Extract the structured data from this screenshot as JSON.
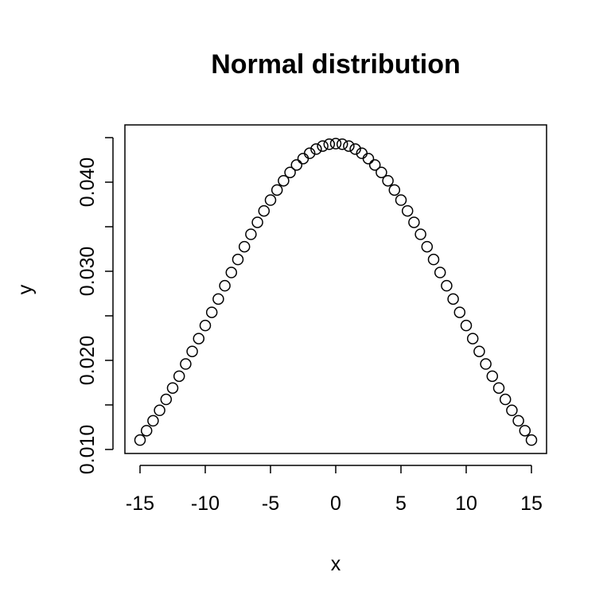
{
  "chart_data": {
    "type": "scatter",
    "title": "Normal distribution",
    "xlabel": "x",
    "ylabel": "y",
    "xlim": [
      -15,
      15
    ],
    "ylim": [
      0.0108,
      0.045
    ],
    "x_ticks": [
      -15,
      -10,
      -5,
      0,
      5,
      10,
      15
    ],
    "x_tick_labels": [
      "-15",
      "-10",
      "-5",
      "0",
      "5",
      "10",
      "15"
    ],
    "y_ticks": [
      0.01,
      0.015,
      0.02,
      0.025,
      0.03,
      0.035,
      0.04,
      0.045
    ],
    "y_tick_labels": [
      "0.010",
      "",
      "0.020",
      "",
      "0.030",
      "",
      "0.040",
      ""
    ],
    "distribution": {
      "mean": 0,
      "sd": 9
    },
    "x": [
      -15,
      -14.5,
      -14,
      -13.5,
      -13,
      -12.5,
      -12,
      -11.5,
      -11,
      -10.5,
      -10,
      -9.5,
      -9,
      -8.5,
      -8,
      -7.5,
      -7,
      -6.5,
      -6,
      -5.5,
      -5,
      -4.5,
      -4,
      -3.5,
      -3,
      -2.5,
      -2,
      -1.5,
      -1,
      -0.5,
      0,
      0.5,
      1,
      1.5,
      2,
      2.5,
      3,
      3.5,
      4,
      4.5,
      5,
      5.5,
      6,
      6.5,
      7,
      7.5,
      8,
      8.5,
      9,
      9.5,
      10,
      10.5,
      11,
      11.5,
      12,
      12.5,
      13,
      13.5,
      14,
      14.5,
      15
    ],
    "marker": "open-circle",
    "grid": false,
    "legend": "none"
  }
}
